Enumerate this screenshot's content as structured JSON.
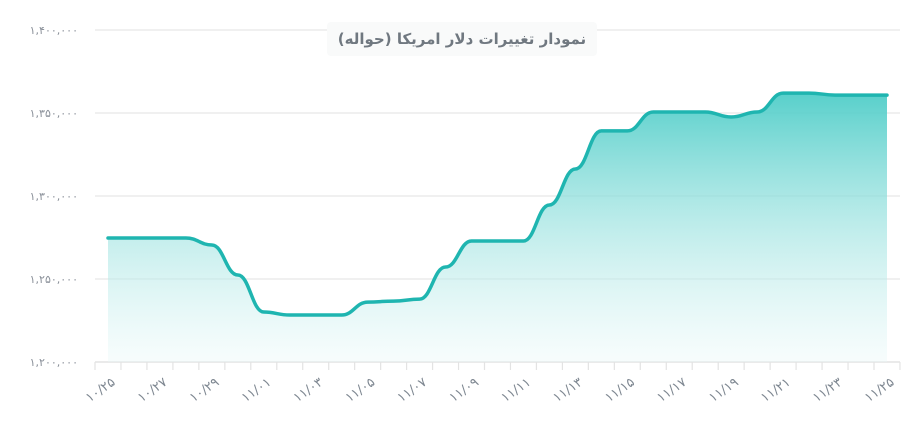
{
  "chart_data": {
    "type": "area",
    "title": "نمودار تغییرات دلار امریکا (حواله)",
    "xlabel": "",
    "ylabel": "",
    "ylim": [
      1200000,
      1400000
    ],
    "y_ticks": [
      "۱,۲۰۰,۰۰۰",
      "۱,۲۵۰,۰۰۰",
      "۱,۳۰۰,۰۰۰",
      "۱,۳۵۰,۰۰۰",
      "۱,۴۰۰,۰۰۰"
    ],
    "y_tick_values": [
      1200000,
      1250000,
      1300000,
      1350000,
      1400000
    ],
    "x_tick_labels": [
      "۱۰/۲۵",
      "۱۰/۲۷",
      "۱۰/۲۹",
      "۱۱/۰۱",
      "۱۱/۰۳",
      "۱۱/۰۵",
      "۱۱/۰۷",
      "۱۱/۰۹",
      "۱۱/۱۱",
      "۱۱/۱۳",
      "۱۱/۱۵",
      "۱۱/۱۷",
      "۱۱/۱۹",
      "۱۱/۲۱",
      "۱۱/۲۳",
      "۱۱/۲۵"
    ],
    "grid": true,
    "legend": null,
    "x": [
      "10/25",
      "10/26",
      "10/27",
      "10/28",
      "10/29",
      "10/30",
      "11/01",
      "11/02",
      "11/03",
      "11/04",
      "11/05",
      "11/06",
      "11/07",
      "11/08",
      "11/09",
      "11/10",
      "11/11",
      "11/12",
      "11/13",
      "11/14",
      "11/15",
      "11/16",
      "11/17",
      "11/18",
      "11/19",
      "11/20",
      "11/21",
      "11/22",
      "11/23",
      "11/24",
      "11/25"
    ],
    "series": [
      {
        "name": "دلار امریکا (حواله)",
        "color": "#1fb5b0",
        "values": [
          1274700,
          1274700,
          1274700,
          1274700,
          1270500,
          1252400,
          1230100,
          1228300,
          1228300,
          1228300,
          1236100,
          1236700,
          1237900,
          1257200,
          1272900,
          1272900,
          1272900,
          1294600,
          1316300,
          1339200,
          1339200,
          1350600,
          1350600,
          1350600,
          1347600,
          1350600,
          1362000,
          1362000,
          1360800,
          1360800,
          1360800
        ]
      }
    ]
  },
  "colors": {
    "line": "#1fb5b0",
    "area_top": "#4fcdc8",
    "area_bottom": "#ffffff",
    "grid": "#ececec",
    "axis_text": "#8a9099"
  }
}
